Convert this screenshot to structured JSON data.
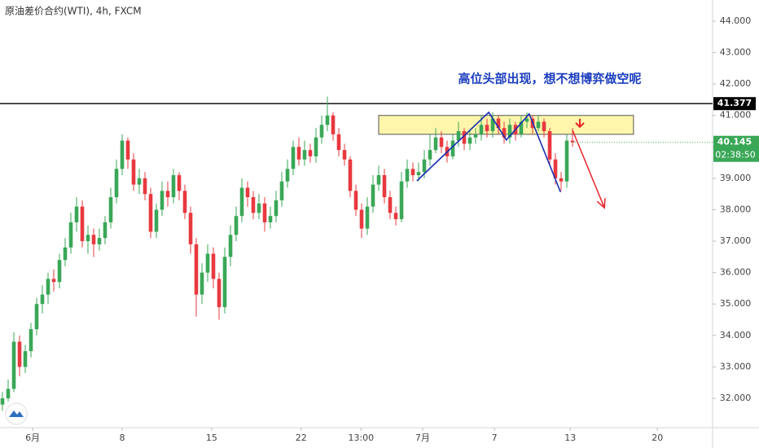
{
  "chart_data": {
    "type": "candlestick",
    "title": "原油差价合约(WTI), 4h, FXCM",
    "annotation": "高位头部出现，想不想博弈做空呢",
    "up_color": "#3aa757",
    "down_color": "#e8393f",
    "xlim": [
      -0.43,
      124.57
    ],
    "ylim": [
      31.066,
      44.674
    ],
    "yticks": [
      {
        "value": 32,
        "label": "32.000"
      },
      {
        "value": 33,
        "label": "33.000"
      },
      {
        "value": 34,
        "label": "34.000"
      },
      {
        "value": 35,
        "label": "35.000"
      },
      {
        "value": 36,
        "label": "36.000"
      },
      {
        "value": 37,
        "label": "37.000"
      },
      {
        "value": 38,
        "label": "38.000"
      },
      {
        "value": 39,
        "label": "39.000"
      },
      {
        "value": 40,
        "label": "40.000"
      },
      {
        "value": 41,
        "label": "41.000"
      },
      {
        "value": 42,
        "label": "42.000"
      },
      {
        "value": 43,
        "label": "43.000"
      },
      {
        "value": 44,
        "label": "44.000"
      }
    ],
    "xticks": [
      {
        "value": 5.3,
        "label": "6月"
      },
      {
        "value": 21,
        "label": "8"
      },
      {
        "value": 36.7,
        "label": "15"
      },
      {
        "value": 52.4,
        "label": "22"
      },
      {
        "value": 62.9,
        "label": "13:00"
      },
      {
        "value": 73.7,
        "label": "7月"
      },
      {
        "value": 86.3,
        "label": "7"
      },
      {
        "value": 99.6,
        "label": "13"
      },
      {
        "value": 114.9,
        "label": "20"
      }
    ],
    "ohlc": [
      [
        31.8,
        32.2,
        31.6,
        32.0
      ],
      [
        32.0,
        32.6,
        31.9,
        32.3
      ],
      [
        32.3,
        34.1,
        32.2,
        33.8
      ],
      [
        33.8,
        34.0,
        32.7,
        33.0
      ],
      [
        33.0,
        33.7,
        32.8,
        33.5
      ],
      [
        33.5,
        34.4,
        33.3,
        34.2
      ],
      [
        34.2,
        35.2,
        34.0,
        35.0
      ],
      [
        35.0,
        35.6,
        34.7,
        35.3
      ],
      [
        35.3,
        36.0,
        35.0,
        35.8
      ],
      [
        35.8,
        36.1,
        35.4,
        35.7
      ],
      [
        35.7,
        36.6,
        35.5,
        36.4
      ],
      [
        36.4,
        37.1,
        36.2,
        36.8
      ],
      [
        36.8,
        37.9,
        36.6,
        37.6
      ],
      [
        37.6,
        38.4,
        37.3,
        38.1
      ],
      [
        38.1,
        38.3,
        36.8,
        37.0
      ],
      [
        37.0,
        37.5,
        36.6,
        37.2
      ],
      [
        37.2,
        37.4,
        36.5,
        36.9
      ],
      [
        36.9,
        37.4,
        36.7,
        37.1
      ],
      [
        37.1,
        37.8,
        36.9,
        37.6
      ],
      [
        37.6,
        38.7,
        37.4,
        38.4
      ],
      [
        38.4,
        39.6,
        38.2,
        39.3
      ],
      [
        39.3,
        40.4,
        39.1,
        40.2
      ],
      [
        40.2,
        40.3,
        39.3,
        39.6
      ],
      [
        39.6,
        39.8,
        38.6,
        38.8
      ],
      [
        38.8,
        39.3,
        38.5,
        39.0
      ],
      [
        39.0,
        39.2,
        38.3,
        38.5
      ],
      [
        38.5,
        38.7,
        37.1,
        37.3
      ],
      [
        37.3,
        38.2,
        37.1,
        38.0
      ],
      [
        38.0,
        38.9,
        37.8,
        38.6
      ],
      [
        38.6,
        38.9,
        38.1,
        38.4
      ],
      [
        38.4,
        39.3,
        38.2,
        39.1
      ],
      [
        39.1,
        39.2,
        38.3,
        38.6
      ],
      [
        38.6,
        38.8,
        37.7,
        37.9
      ],
      [
        37.9,
        38.1,
        36.6,
        36.9
      ],
      [
        36.9,
        37.1,
        34.6,
        35.3
      ],
      [
        35.3,
        36.3,
        35.0,
        36.0
      ],
      [
        36.0,
        36.9,
        35.7,
        36.6
      ],
      [
        36.6,
        36.8,
        35.5,
        35.8
      ],
      [
        35.8,
        36.0,
        34.5,
        34.9
      ],
      [
        34.9,
        36.8,
        34.7,
        36.5
      ],
      [
        36.5,
        37.5,
        36.2,
        37.2
      ],
      [
        37.2,
        38.1,
        37.0,
        37.8
      ],
      [
        37.8,
        39.0,
        37.6,
        38.7
      ],
      [
        38.7,
        38.9,
        38.1,
        38.4
      ],
      [
        38.4,
        38.6,
        37.7,
        37.9
      ],
      [
        37.9,
        38.5,
        37.7,
        38.2
      ],
      [
        38.2,
        38.4,
        37.3,
        37.6
      ],
      [
        37.6,
        38.1,
        37.4,
        37.8
      ],
      [
        37.8,
        38.6,
        37.6,
        38.3
      ],
      [
        38.3,
        39.2,
        38.1,
        38.9
      ],
      [
        38.9,
        39.6,
        38.7,
        39.3
      ],
      [
        39.3,
        40.2,
        39.1,
        40.0
      ],
      [
        40.0,
        40.3,
        39.4,
        39.6
      ],
      [
        39.6,
        40.2,
        39.4,
        39.9
      ],
      [
        39.9,
        40.1,
        39.5,
        39.7
      ],
      [
        39.7,
        40.6,
        39.5,
        40.3
      ],
      [
        40.3,
        41.0,
        40.1,
        40.7
      ],
      [
        40.7,
        41.6,
        40.5,
        41.0
      ],
      [
        41.0,
        41.1,
        40.2,
        40.4
      ],
      [
        40.4,
        40.6,
        39.7,
        39.9
      ],
      [
        39.9,
        40.1,
        39.4,
        39.6
      ],
      [
        39.6,
        39.7,
        38.4,
        38.6
      ],
      [
        38.6,
        38.8,
        37.8,
        38.0
      ],
      [
        38.0,
        38.2,
        37.1,
        37.4
      ],
      [
        37.4,
        38.4,
        37.2,
        38.1
      ],
      [
        38.1,
        39.1,
        37.9,
        38.8
      ],
      [
        38.8,
        39.4,
        38.6,
        39.1
      ],
      [
        39.1,
        39.3,
        38.2,
        38.4
      ],
      [
        38.4,
        38.6,
        37.7,
        37.9
      ],
      [
        37.9,
        38.1,
        37.5,
        37.7
      ],
      [
        37.7,
        39.2,
        37.6,
        38.9
      ],
      [
        38.9,
        39.6,
        38.7,
        39.3
      ],
      [
        39.3,
        39.5,
        38.9,
        39.1
      ],
      [
        39.1,
        39.5,
        38.9,
        39.2
      ],
      [
        39.2,
        39.9,
        39.0,
        39.6
      ],
      [
        39.6,
        40.4,
        39.4,
        39.9
      ],
      [
        39.9,
        40.6,
        39.8,
        40.3
      ],
      [
        40.3,
        40.5,
        39.8,
        40.0
      ],
      [
        40.0,
        40.2,
        39.5,
        39.7
      ],
      [
        39.7,
        40.4,
        39.6,
        40.2
      ],
      [
        40.2,
        40.8,
        40.0,
        40.5
      ],
      [
        40.5,
        40.6,
        39.9,
        40.1
      ],
      [
        40.1,
        40.5,
        39.9,
        40.3
      ],
      [
        40.3,
        40.6,
        40.1,
        40.4
      ],
      [
        40.4,
        41.0,
        40.2,
        40.7
      ],
      [
        40.7,
        40.9,
        40.3,
        40.5
      ],
      [
        40.5,
        41.1,
        40.3,
        40.9
      ],
      [
        40.9,
        41.0,
        40.4,
        40.6
      ],
      [
        40.6,
        40.8,
        40.1,
        40.3
      ],
      [
        40.3,
        40.9,
        40.1,
        40.7
      ],
      [
        40.7,
        40.8,
        40.2,
        40.4
      ],
      [
        40.4,
        41.0,
        40.3,
        40.8
      ],
      [
        40.8,
        41.1,
        40.6,
        40.9
      ],
      [
        40.9,
        41.0,
        40.4,
        40.6
      ],
      [
        40.6,
        41.0,
        40.5,
        40.8
      ],
      [
        40.8,
        40.9,
        40.3,
        40.5
      ],
      [
        40.5,
        40.6,
        39.4,
        39.6
      ],
      [
        39.6,
        39.8,
        38.8,
        39.0
      ],
      [
        39.0,
        39.2,
        38.6,
        38.9
      ],
      [
        38.9,
        40.4,
        38.7,
        40.2
      ],
      [
        40.2,
        40.6,
        40.0,
        40.145
      ]
    ],
    "hline": {
      "value": 41.377,
      "color": "#000000"
    },
    "last_price": {
      "value": 40.145,
      "countdown": "02:38:50",
      "color": "#3aa757"
    },
    "zone": {
      "x": [
        66,
        110.7
      ],
      "y": [
        40.4,
        41.0
      ],
      "color": "#fff59d"
    },
    "zigzag": {
      "x": [
        72.7,
        85.3,
        88.4,
        92.4,
        97.9
      ],
      "y": [
        38.92,
        41.1,
        40.22,
        41.05,
        38.56
      ],
      "color": "#1a2fb0"
    },
    "arrow": {
      "x": [
        100,
        105.6
      ],
      "y": [
        40.53,
        38.06
      ],
      "color": "#e8232a"
    }
  }
}
